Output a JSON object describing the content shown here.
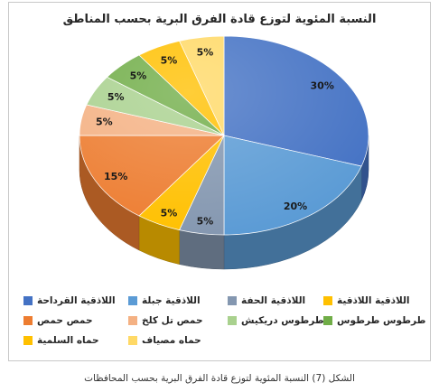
{
  "chart_data": {
    "type": "pie",
    "style": "3d",
    "title": "النسبة المئوية لتوزع قادة الفرق البرية بحسب المناطق",
    "categories": [
      "اللاذقية القرداحة",
      "اللاذقية جبلة",
      "اللاذقية الحفة",
      "اللاذقية اللاذقية",
      "حمص حمص",
      "حمص تل كلخ",
      "طرطوس دريكيش",
      "طرطوس طرطوس",
      "حماه السلمية",
      "حماه مصياف"
    ],
    "values": [
      30,
      20,
      5,
      5,
      15,
      5,
      5,
      5,
      5,
      5
    ],
    "value_suffix": "%",
    "colors": [
      "#4472C4",
      "#5B9BD5",
      "#8497B0",
      "#FFC000",
      "#ED7D31",
      "#F4B183",
      "#A9D18E",
      "#70AD47",
      "#FFC000",
      "#FFD966"
    ],
    "legend": "bottom"
  },
  "caption": "الشكل (7) النسبة المئوية لتوزع قادة الفرق البرية بحسب المحافظات"
}
